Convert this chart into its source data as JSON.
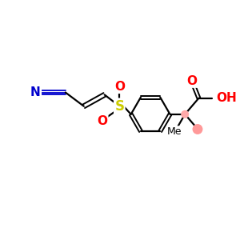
{
  "bg_color": "#ffffff",
  "bond_color": "#000000",
  "N_color": "#0000cd",
  "S_color": "#cccc00",
  "O_color": "#ff0000",
  "Me_circle_color": "#ff9999",
  "figsize": [
    3.0,
    3.0
  ],
  "dpi": 100,
  "xlim": [
    0,
    10
  ],
  "ylim": [
    0,
    10
  ],
  "lw": 1.6,
  "lw2": 1.4
}
